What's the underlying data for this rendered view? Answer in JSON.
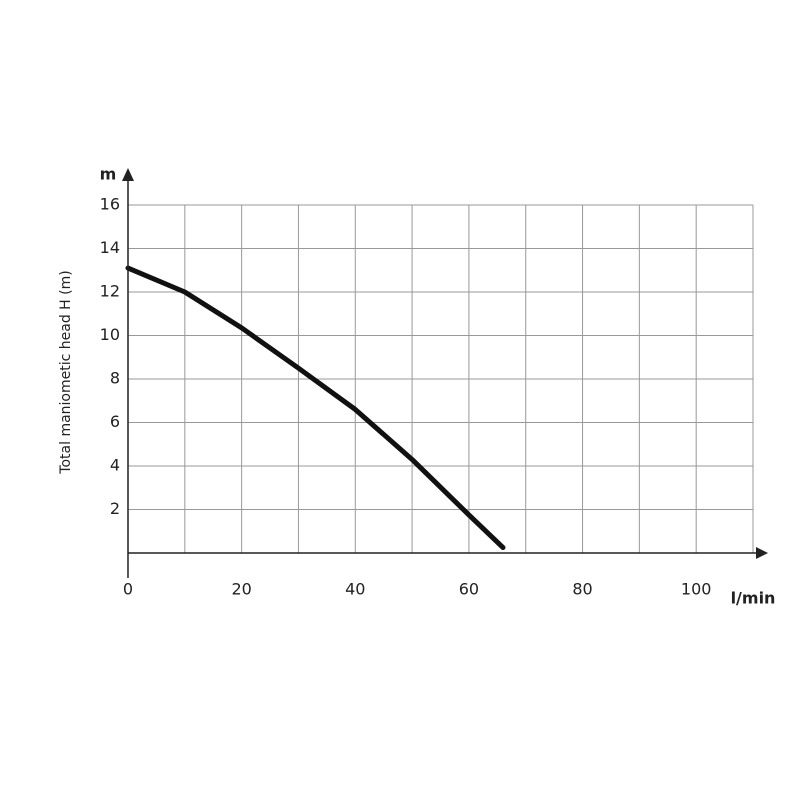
{
  "chart_data": {
    "type": "line",
    "y_axis_label": "Total maniometic head H  (m)",
    "y_unit": "m",
    "x_unit": "l/min",
    "x": [
      0,
      10,
      20,
      30,
      40,
      50,
      60,
      66
    ],
    "series": [
      {
        "color": "#111111",
        "values": [
          13.1,
          12.0,
          10.35,
          8.5,
          6.6,
          4.3,
          1.75,
          0.25
        ]
      }
    ],
    "xlim": [
      0,
      110
    ],
    "xticks": [
      0,
      20,
      40,
      60,
      80,
      100
    ],
    "x_minor_ticks": [
      10,
      30,
      50,
      70,
      90,
      110
    ],
    "ylim": [
      0,
      16
    ],
    "yticks": [
      2,
      4,
      6,
      8,
      10,
      12,
      14,
      16
    ],
    "grid": true
  }
}
